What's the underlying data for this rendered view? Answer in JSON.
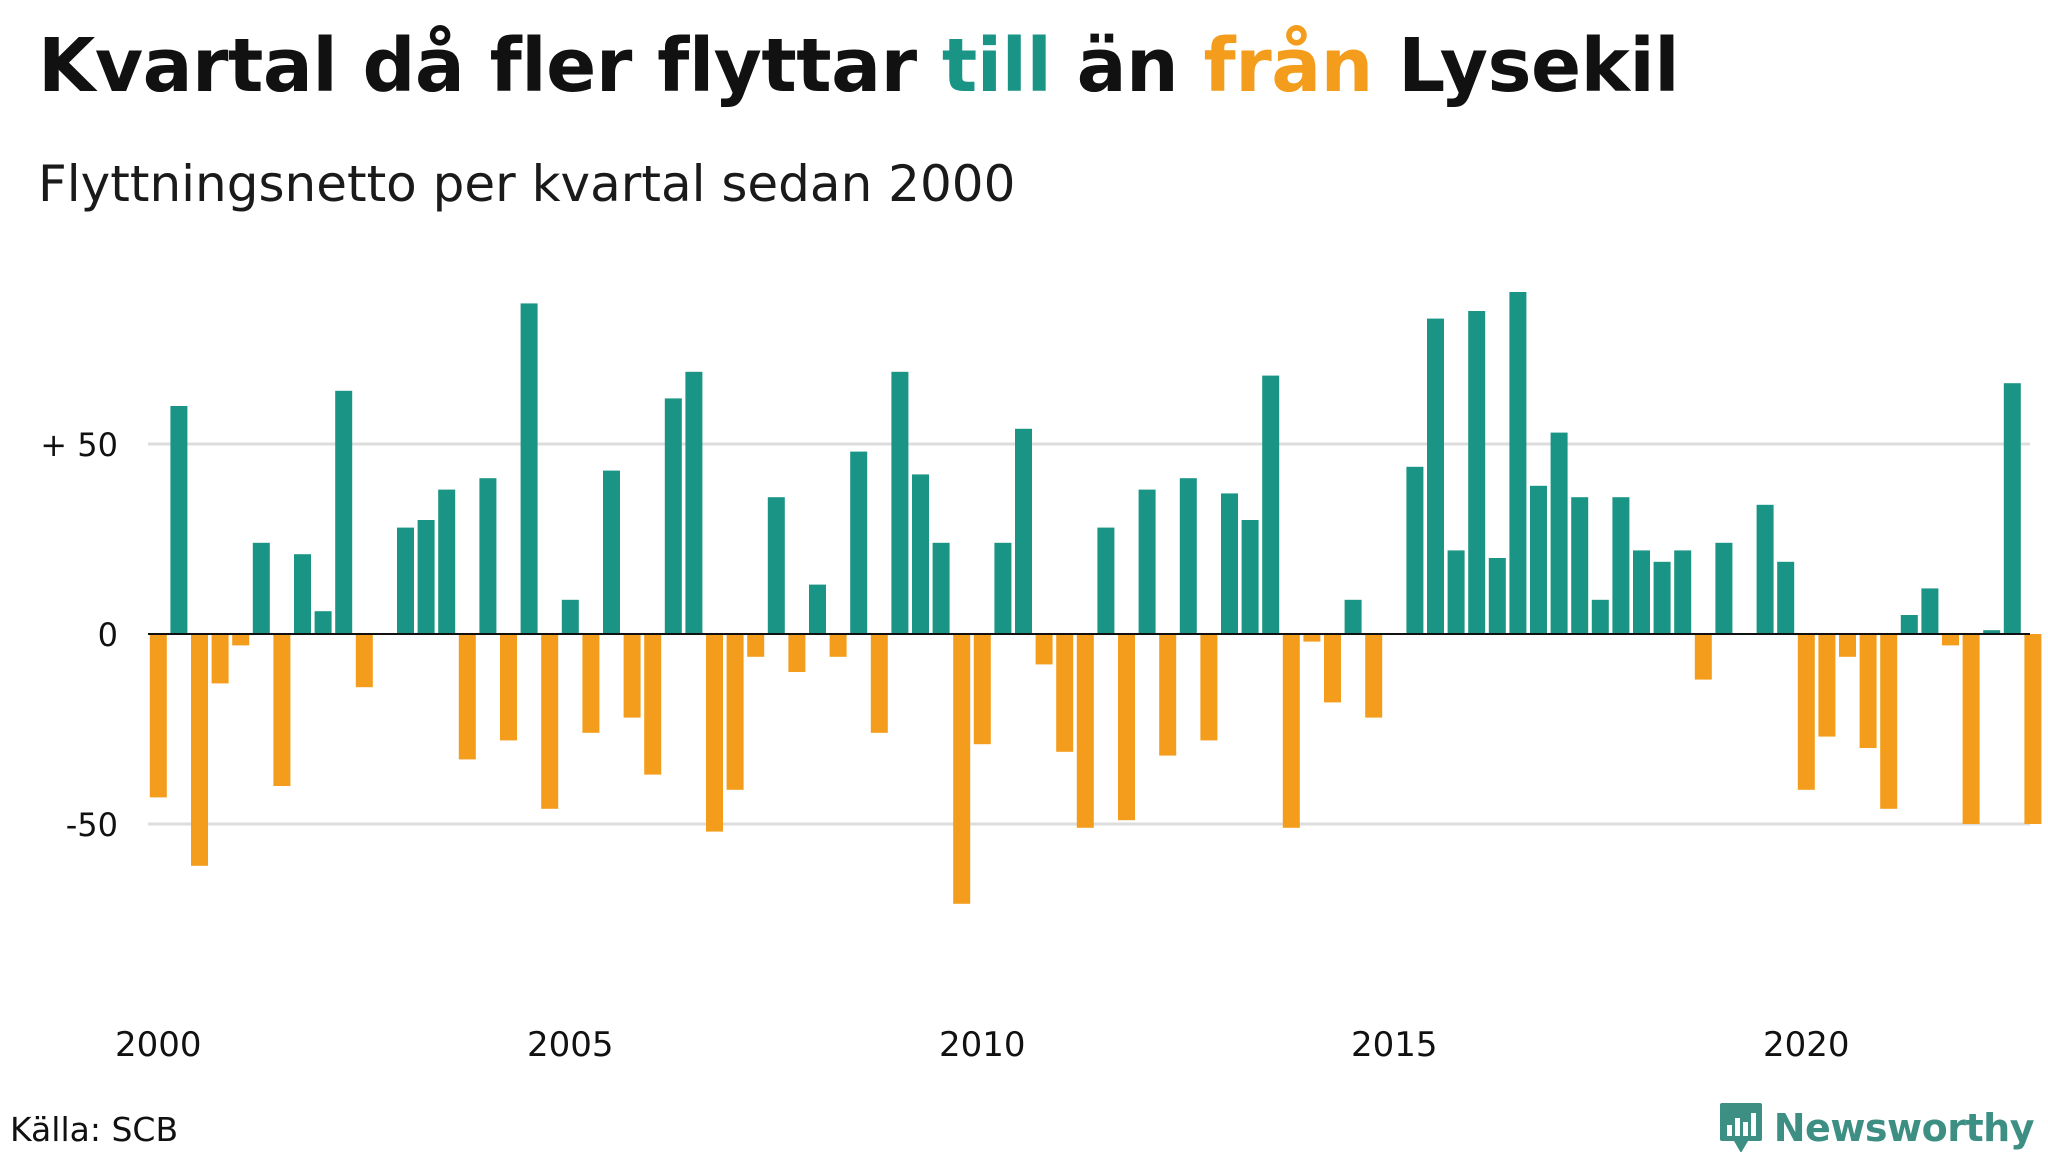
{
  "title": {
    "part1": "Kvartal då fler flyttar ",
    "part2": "till",
    "part3": " än ",
    "part4": "från",
    "part5": " Lysekil"
  },
  "subtitle": "Flyttningsnetto per kvartal sedan 2000",
  "source": "Källa: SCB",
  "brand": {
    "name": "Newsworthy",
    "icon": "newsworthy-logo-icon"
  },
  "colors": {
    "positive": "#1a9585",
    "negative": "#f49c1b",
    "grid": "#dddddd",
    "zero_line": "#111111",
    "brand": "#3d8f84"
  },
  "chart_data": {
    "type": "bar",
    "title": "Kvartal då fler flyttar till än från Lysekil",
    "subtitle": "Flyttningsnetto per kvartal sedan 2000",
    "ylim": [
      -90,
      95
    ],
    "grid": true,
    "y_ticks": [
      {
        "value": 50,
        "label": "+ 50"
      },
      {
        "value": 0,
        "label": "0"
      },
      {
        "value": -50,
        "label": "-50"
      }
    ],
    "x_ticks": [
      {
        "index": 0,
        "label": "2000"
      },
      {
        "index": 20,
        "label": "2005"
      },
      {
        "index": 40,
        "label": "2010"
      },
      {
        "index": 60,
        "label": "2015"
      },
      {
        "index": 80,
        "label": "2020"
      }
    ],
    "categories": [
      "2000K1",
      "2000K2",
      "2000K3",
      "2000K4",
      "2001K1",
      "2001K2",
      "2001K3",
      "2001K4",
      "2002K1",
      "2002K2",
      "2002K3",
      "2002K4",
      "2003K1",
      "2003K2",
      "2003K3",
      "2003K4",
      "2004K1",
      "2004K2",
      "2004K3",
      "2004K4",
      "2005K1",
      "2005K2",
      "2005K3",
      "2005K4",
      "2006K1",
      "2006K2",
      "2006K3",
      "2006K4",
      "2007K1",
      "2007K2",
      "2007K3",
      "2007K4",
      "2008K1",
      "2008K2",
      "2008K3",
      "2008K4",
      "2009K1",
      "2009K2",
      "2009K3",
      "2009K4",
      "2010K1",
      "2010K2",
      "2010K3",
      "2010K4",
      "2011K1",
      "2011K2",
      "2011K3",
      "2011K4",
      "2012K1",
      "2012K2",
      "2012K3",
      "2012K4",
      "2013K1",
      "2013K2",
      "2013K3",
      "2013K4",
      "2014K1",
      "2014K2",
      "2014K3",
      "2014K4",
      "2015K1",
      "2015K2",
      "2015K3",
      "2015K4",
      "2016K1",
      "2016K2",
      "2016K3",
      "2016K4",
      "2017K1",
      "2017K2",
      "2017K3",
      "2017K4",
      "2018K1",
      "2018K2",
      "2018K3",
      "2018K4",
      "2019K1",
      "2019K2",
      "2019K3",
      "2019K4",
      "2020K1",
      "2020K2",
      "2020K3",
      "2020K4",
      "2021K1",
      "2021K2",
      "2021K3",
      "2021K4",
      "2022K1",
      "2022K2",
      "2022K3",
      "2022K4"
    ],
    "values": [
      -43,
      60,
      -61,
      -13,
      -3,
      24,
      -40,
      21,
      6,
      64,
      -14,
      0,
      28,
      30,
      38,
      -33,
      41,
      -28,
      87,
      -46,
      9,
      -26,
      43,
      -22,
      -37,
      62,
      69,
      -52,
      -41,
      -6,
      36,
      -10,
      13,
      -6,
      48,
      -26,
      69,
      42,
      24,
      -71,
      -29,
      24,
      54,
      -8,
      -31,
      -51,
      28,
      -49,
      38,
      -32,
      41,
      -28,
      37,
      30,
      68,
      -51,
      -2,
      -18,
      9,
      -22,
      0,
      44,
      83,
      22,
      85,
      20,
      90,
      39,
      53,
      36,
      9,
      36,
      22,
      19,
      22,
      -12,
      24,
      0,
      34,
      19,
      -41,
      -27,
      -6,
      -30,
      -46,
      5,
      12,
      -3,
      -50,
      1,
      66,
      -50
    ]
  }
}
